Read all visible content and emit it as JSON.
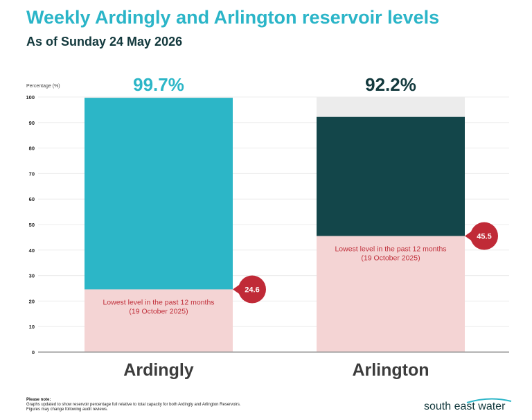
{
  "header": {
    "title": "Weekly Ardingly and Arlington reservoir levels",
    "subtitle": "As of Sunday 24 May 2026"
  },
  "chart_data": {
    "type": "bar",
    "ylabel": "Percentage (%)",
    "ylim": [
      0,
      100
    ],
    "yticks": [
      0,
      10,
      20,
      30,
      40,
      50,
      60,
      70,
      80,
      90,
      100
    ],
    "grid": true,
    "categories": [
      "Ardingly",
      "Arlington"
    ],
    "values": [
      99.7,
      92.2
    ],
    "value_labels": [
      "99.7%",
      "92.2%"
    ],
    "lowest_values": [
      24.6,
      45.5
    ],
    "lowest_value_labels": [
      "24.6",
      "45.5"
    ],
    "lowest_label_line1": "Lowest level in the past 12 months",
    "lowest_label_line2": "(19 October 2025)",
    "colors": {
      "Ardingly": "#2cb6c7",
      "Arlington": "#13464a",
      "Ardingly_label": "#2cb6c7",
      "Arlington_label": "#13393d",
      "capacity_remaining": "#ececec",
      "lowest_zone": "#f4d4d4",
      "lowest_text": "#c0313c",
      "lowest_badge": "#c02a37"
    }
  },
  "footer": {
    "note_title": "Please note:",
    "note_line1": "Graphs updated to show reservoir percentage full relative to total capacity for both Ardingly and Arlington Reservoirs.",
    "note_line2": "Figures may change following audit reviews.",
    "logo_text": "south east water"
  }
}
